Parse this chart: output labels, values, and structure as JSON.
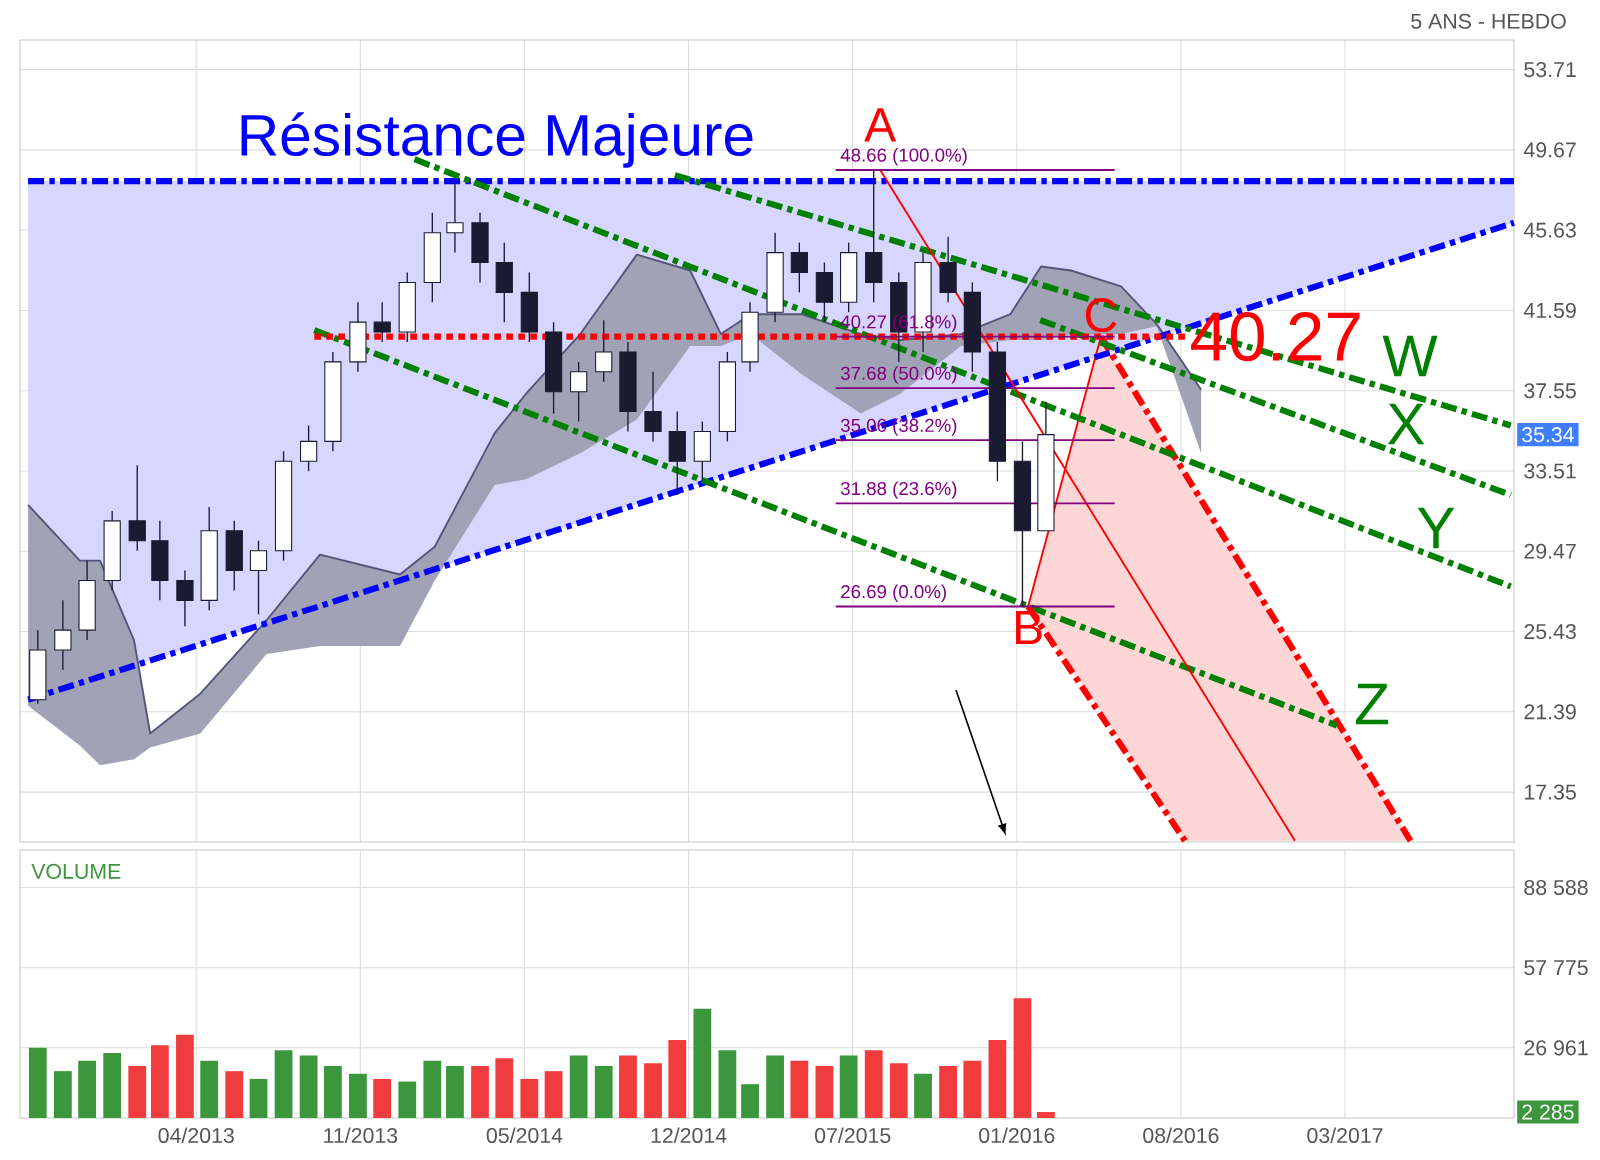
{
  "chart_data": [
    {
      "type": "candlestick",
      "subtitle": "5 ANS - HEBDO",
      "x": [
        "2012-10",
        "2012-11",
        "2012-12",
        "2013-01",
        "2013-02",
        "2013-03",
        "2013-04",
        "2013-05",
        "2013-06",
        "2013-07",
        "2013-08",
        "2013-09",
        "2013-10",
        "2013-11",
        "2013-12",
        "2014-01",
        "2014-02",
        "2014-03",
        "2014-04",
        "2014-05",
        "2014-06",
        "2014-07",
        "2014-08",
        "2014-09",
        "2014-10",
        "2014-11",
        "2014-12",
        "2015-01",
        "2015-02",
        "2015-03",
        "2015-04",
        "2015-05",
        "2015-06",
        "2015-07",
        "2015-08",
        "2015-09",
        "2015-10",
        "2015-11",
        "2015-12",
        "2016-01",
        "2016-02",
        "2016-03"
      ],
      "ohlc": [
        [
          22.0,
          25.5,
          21.8,
          24.5
        ],
        [
          24.5,
          27.0,
          23.5,
          25.5
        ],
        [
          25.5,
          29.0,
          25.0,
          28.0
        ],
        [
          28.0,
          31.5,
          27.5,
          31.0
        ],
        [
          31.0,
          33.8,
          29.5,
          30.0
        ],
        [
          30.0,
          31.0,
          27.0,
          28.0
        ],
        [
          28.0,
          28.5,
          25.7,
          27.0
        ],
        [
          27.0,
          31.7,
          26.5,
          30.5
        ],
        [
          30.5,
          31.0,
          27.5,
          28.5
        ],
        [
          28.5,
          30.0,
          26.3,
          29.5
        ],
        [
          29.5,
          34.5,
          29.0,
          34.0
        ],
        [
          34.0,
          35.8,
          33.5,
          35.0
        ],
        [
          35.0,
          39.5,
          34.5,
          39.0
        ],
        [
          39.0,
          42.0,
          38.5,
          41.0
        ],
        [
          41.0,
          42.0,
          40.0,
          40.5
        ],
        [
          40.5,
          43.5,
          40.0,
          43.0
        ],
        [
          43.0,
          46.5,
          42.0,
          45.5
        ],
        [
          45.5,
          48.0,
          44.5,
          46.0
        ],
        [
          46.0,
          46.5,
          43.0,
          44.0
        ],
        [
          44.0,
          45.0,
          41.0,
          42.5
        ],
        [
          42.5,
          43.5,
          40.0,
          40.5
        ],
        [
          40.5,
          41.0,
          36.4,
          37.5
        ],
        [
          37.5,
          39.0,
          36.0,
          38.5
        ],
        [
          38.5,
          41.1,
          38.0,
          39.5
        ],
        [
          39.5,
          40.0,
          35.5,
          36.5
        ],
        [
          36.5,
          38.5,
          35.0,
          35.5
        ],
        [
          35.5,
          36.5,
          32.3,
          34.0
        ],
        [
          34.0,
          36.0,
          33.0,
          35.5
        ],
        [
          35.5,
          39.5,
          35.0,
          39.0
        ],
        [
          39.0,
          42.0,
          38.5,
          41.5
        ],
        [
          41.5,
          45.5,
          41.0,
          44.5
        ],
        [
          44.5,
          45.0,
          42.5,
          43.5
        ],
        [
          43.5,
          44.0,
          41.0,
          42.0
        ],
        [
          42.0,
          45.0,
          41.5,
          44.5
        ],
        [
          44.5,
          48.66,
          42.0,
          43.0
        ],
        [
          43.0,
          43.5,
          39.0,
          40.5
        ],
        [
          40.5,
          44.5,
          39.5,
          44.0
        ],
        [
          44.0,
          45.3,
          42.0,
          42.5
        ],
        [
          42.5,
          43.0,
          38.5,
          39.5
        ],
        [
          39.5,
          40.0,
          33.0,
          34.0
        ],
        [
          34.0,
          35.0,
          26.69,
          30.5
        ],
        [
          30.5,
          37.0,
          30.5,
          35.34
        ]
      ],
      "xlim": [
        "2012-09-09",
        "2017-10-01"
      ],
      "xticks": [
        {
          "value": "2013-04-15",
          "label": null
        },
        {
          "value": "2013-11-04",
          "label": null
        },
        {
          "value": "2014-05-26",
          "label": null
        },
        {
          "value": "2014-12-15",
          "label": null
        },
        {
          "value": "2015-07-06",
          "label": null
        },
        {
          "value": "2016-01-25",
          "label": null
        },
        {
          "value": "2016-08-15",
          "label": null
        },
        {
          "value": "2017-03-06",
          "label": null
        }
      ],
      "ylim": [
        14.84,
        55.2
      ],
      "yticks": [
        53.71,
        49.67,
        45.63,
        41.59,
        37.55,
        33.51,
        29.47,
        25.43,
        21.39,
        17.35
      ],
      "grid": true,
      "tick_labels": "y",
      "series": [
        {
          "type": "line",
          "x": [
            "2012-09-19",
            "2017-10-01"
          ],
          "values": [
            48.1,
            48.1
          ],
          "lower": [
            22.0,
            46.0
          ],
          "upper": [
            48.1,
            48.1
          ],
          "color": "#0000ff",
          "line_style": "dashed"
        },
        {
          "type": "line",
          "x": [
            "2012-09-19",
            "2012-11-22",
            "2012-12-17",
            "2013-01-28",
            "2013-02-17",
            "2013-04-20",
            "2013-07-11",
            "2013-09-15",
            "2013-12-23",
            "2014-02-04",
            "2014-04-19",
            "2014-05-28",
            "2014-08-03",
            "2014-10-12",
            "2014-12-17",
            "2015-01-24",
            "2015-03-02",
            "2015-05-03",
            "2015-07-16",
            "2015-09-03",
            "2015-11-17",
            "2016-01-17",
            "2016-02-24",
            "2016-04-01",
            "2016-06-02",
            "2016-07-16",
            "2016-09-09"
          ],
          "values": [
            31.8,
            29.0,
            29.0,
            25.0,
            20.3,
            22.3,
            26.0,
            29.3,
            28.3,
            29.7,
            35.4,
            37.4,
            40.4,
            44.4,
            43.6,
            40.4,
            41.4,
            41.4,
            40.4,
            40.1,
            40.4,
            41.4,
            43.8,
            43.6,
            42.8,
            40.9,
            37.6
          ],
          "lower": [
            21.7,
            19.7,
            18.7,
            19.0,
            19.6,
            20.3,
            24.3,
            24.7,
            24.7,
            28.0,
            32.8,
            33.1,
            34.4,
            36.1,
            39.8,
            39.8,
            40.4,
            38.4,
            36.4,
            37.4,
            39.8,
            40.1,
            40.1,
            40.4,
            40.4,
            40.8,
            34.4
          ],
          "upper": [
            31.8,
            29.0,
            29.0,
            25.0,
            20.3,
            22.3,
            26.0,
            29.3,
            28.3,
            29.7,
            35.4,
            37.4,
            40.4,
            44.4,
            43.6,
            40.4,
            41.4,
            41.4,
            40.4,
            40.1,
            40.4,
            41.4,
            43.8,
            43.6,
            42.8,
            40.9,
            37.6
          ],
          "color": "#55557a",
          "line_style": "solid"
        },
        {
          "type": "line",
          "x": [
            "2016-02-08",
            "2016-05-08",
            "2016-08-20",
            "2017-05-26"
          ],
          "values": [
            26.69,
            40.27,
            null,
            null
          ],
          "lower": [
            26.69,
            21.4,
            14.9,
            14.9
          ],
          "upper": [
            26.69,
            40.27,
            33.4,
            14.9
          ],
          "color": "#ff0000",
          "line_style": "solid"
        },
        {
          "type": "line",
          "x": [
            "2016-05-08",
            "2017-05-26"
          ],
          "values": [
            40.27,
            14.9
          ],
          "color": "#ff0000",
          "line_style": "dashed"
        },
        {
          "type": "line",
          "x": [
            "2012-09-19",
            "2017-10-01"
          ],
          "values": [
            22.0,
            46.0
          ],
          "color": "#0000ff",
          "line_style": "dashed"
        },
        {
          "type": "line",
          "x": [
            "2014-11-28",
            "2017-09-27"
          ],
          "values": [
            48.4,
            35.8
          ],
          "color": "#008000",
          "line_style": "dashed"
        },
        {
          "type": "line",
          "x": [
            "2016-02-23",
            "2017-09-27"
          ],
          "values": [
            41.1,
            32.3
          ],
          "color": "#008000",
          "line_style": "dashed"
        },
        {
          "type": "line",
          "x": [
            "2014-01-10",
            "2017-09-27"
          ],
          "values": [
            49.2,
            27.7
          ],
          "color": "#008000",
          "line_style": "dashed"
        },
        {
          "type": "line",
          "x": [
            "2013-09-08",
            "2017-02-24"
          ],
          "values": [
            40.6,
            20.7
          ],
          "color": "#008000",
          "line_style": "dashed"
        },
        {
          "type": "line",
          "x": [
            "2013-09-08",
            "2016-08-20"
          ],
          "values": [
            40.27,
            40.27
          ],
          "color": "#ff0000",
          "line_style": "dotted"
        },
        {
          "type": "line",
          "x": [
            "2016-02-08",
            "2016-08-20"
          ],
          "values": [
            26.69,
            14.9
          ],
          "color": "#ff0000",
          "line_style": "dashed"
        },
        {
          "type": "line",
          "x": [
            "2015-08-09",
            "2017-01-03"
          ],
          "values": [
            48.66,
            14.9
          ],
          "color": "#ff0000",
          "line_style": "solid"
        },
        {
          "type": "line",
          "x": [
            "2015-06-15",
            "2016-05-25"
          ],
          "values": [
            48.66,
            48.66
          ],
          "color": "#800080",
          "line_style": "solid"
        },
        {
          "type": "line",
          "x": [
            "2015-06-15",
            "2016-05-25"
          ],
          "values": [
            40.27,
            40.27
          ],
          "color": "#800080",
          "line_style": "solid"
        },
        {
          "type": "line",
          "x": [
            "2015-06-15",
            "2016-05-25"
          ],
          "values": [
            37.68,
            37.68
          ],
          "color": "#800080",
          "line_style": "solid"
        },
        {
          "type": "line",
          "x": [
            "2015-06-15",
            "2016-05-25"
          ],
          "values": [
            35.06,
            35.06
          ],
          "color": "#800080",
          "line_style": "solid"
        },
        {
          "type": "line",
          "x": [
            "2015-06-15",
            "2016-05-25"
          ],
          "values": [
            31.88,
            31.88
          ],
          "color": "#800080",
          "line_style": "solid"
        },
        {
          "type": "line",
          "x": [
            "2015-06-15",
            "2016-05-25"
          ],
          "values": [
            26.69,
            26.69
          ],
          "color": "#800080",
          "line_style": "solid"
        }
      ],
      "annotations": [
        "Résistance Majeure",
        {
          "text": "A",
          "x": "2015-08-09",
          "y": 48.66
        },
        {
          "text": "B",
          "x": "2016-02-08",
          "y": 26.69
        },
        {
          "text": "C",
          "x": "2016-05-08",
          "y": 40.27
        },
        {
          "text": "40.27",
          "x": "2016-08-20",
          "y": 40.27
        },
        "W",
        "X",
        "Y",
        "Z",
        {
          "text": "48.66  (100.0%)",
          "x": "2015-06-15",
          "y": 48.66
        },
        {
          "text": "40.27  (61.8%)",
          "x": "2015-06-15",
          "y": 40.27
        },
        {
          "text": "37.68  (50.0%)",
          "x": "2015-06-15",
          "y": 37.68
        },
        {
          "text": "35.06  (38.2%)",
          "x": "2015-06-15",
          "y": 35.06
        },
        {
          "text": "31.88  (23.6%)",
          "x": "2015-06-15",
          "y": 31.88
        },
        {
          "text": "26.69  (0.0%)",
          "x": "2015-06-15",
          "y": 26.69
        },
        {
          "text": "35.34",
          "y": 35.34
        }
      ]
    },
    {
      "type": "bar",
      "title": "VOLUME",
      "x": [
        "2012-10",
        "2012-11",
        "2012-12",
        "2013-01",
        "2013-02",
        "2013-03",
        "2013-04",
        "2013-05",
        "2013-06",
        "2013-07",
        "2013-08",
        "2013-09",
        "2013-10",
        "2013-11",
        "2013-12",
        "2014-01",
        "2014-02",
        "2014-03",
        "2014-04",
        "2014-05",
        "2014-06",
        "2014-07",
        "2014-08",
        "2014-09",
        "2014-10",
        "2014-11",
        "2014-12",
        "2015-01",
        "2015-02",
        "2015-03",
        "2015-04",
        "2015-05",
        "2015-06",
        "2015-07",
        "2015-08",
        "2015-09",
        "2015-10",
        "2015-11",
        "2015-12",
        "2016-01",
        "2016-02",
        "2016-03"
      ],
      "values": [
        27000,
        18000,
        22000,
        25000,
        20000,
        28000,
        32000,
        22000,
        18000,
        15000,
        26000,
        24000,
        20000,
        17000,
        15000,
        14000,
        22000,
        20000,
        20000,
        23000,
        15000,
        18000,
        24000,
        20000,
        24000,
        21000,
        30000,
        42000,
        26000,
        13000,
        24000,
        22000,
        20000,
        24000,
        26000,
        21000,
        17000,
        20000,
        22000,
        30000,
        46000,
        2285
      ],
      "colors": [
        "#3c963c",
        "#3c963c",
        "#3c963c",
        "#3c963c",
        "#f03c3c",
        "#f03c3c",
        "#f03c3c",
        "#3c963c",
        "#f03c3c",
        "#3c963c",
        "#3c963c",
        "#3c963c",
        "#3c963c",
        "#3c963c",
        "#f03c3c",
        "#3c963c",
        "#3c963c",
        "#3c963c",
        "#f03c3c",
        "#f03c3c",
        "#f03c3c",
        "#f03c3c",
        "#3c963c",
        "#3c963c",
        "#f03c3c",
        "#f03c3c",
        "#f03c3c",
        "#3c963c",
        "#3c963c",
        "#3c963c",
        "#3c963c",
        "#f03c3c",
        "#f03c3c",
        "#3c963c",
        "#f03c3c",
        "#f03c3c",
        "#3c963c",
        "#f03c3c",
        "#f03c3c",
        "#f03c3c",
        "#f03c3c",
        "#f03c3c"
      ],
      "xlim": [
        "2012-09-09",
        "2017-10-01"
      ],
      "xticks": [
        {
          "value": "2013-04-15",
          "label": "04/2013"
        },
        {
          "value": "2013-11-04",
          "label": "11/2013"
        },
        {
          "value": "2014-05-26",
          "label": "05/2014"
        },
        {
          "value": "2014-12-15",
          "label": "12/2014"
        },
        {
          "value": "2015-07-06",
          "label": "07/2015"
        },
        {
          "value": "2016-01-25",
          "label": "01/2016"
        },
        {
          "value": "2016-08-15",
          "label": "08/2016"
        },
        {
          "value": "2017-03-06",
          "label": "03/2017"
        }
      ],
      "ylim": [
        0,
        103000
      ],
      "yticks": [
        {
          "value": 26961,
          "label": "26 961"
        },
        {
          "value": 57775,
          "label": "57 775"
        },
        {
          "value": 88588,
          "label": "88 588"
        }
      ],
      "grid": true,
      "annotations": [
        {
          "text": "2 285",
          "y": 2285
        }
      ]
    }
  ]
}
